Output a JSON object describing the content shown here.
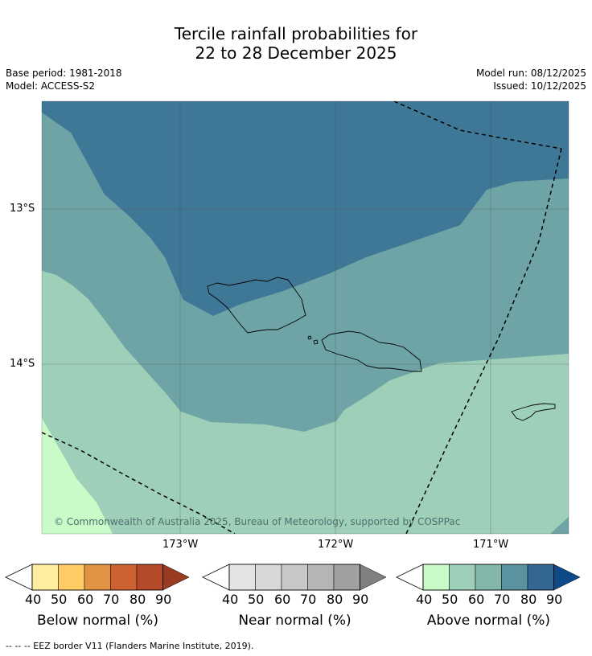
{
  "title_line1": "Tercile rainfall probabilities for",
  "title_line2": "22 to 28 December 2025",
  "meta": {
    "base_period": "Base period: 1981-2018",
    "model": "Model: ACCESS-S2",
    "model_run": "Model run: 08/12/2025",
    "issued": "Issued: 10/12/2025"
  },
  "map": {
    "lat_labels": [
      "13°S",
      "14°S"
    ],
    "lon_labels": [
      "173°W",
      "172°W",
      "171°W"
    ],
    "copyright": "© Commonwealth of Australia 2025, Bureau of Meteorology, supported by COSPPac",
    "colors": {
      "above_90": "#3f7797",
      "above_70": "#6ea4a5",
      "above_50": "#9ed0b9",
      "above_40": "#c8fbc8"
    }
  },
  "colorbars": [
    {
      "label": "Below normal (%)",
      "ticks": [
        "40",
        "50",
        "60",
        "70",
        "80",
        "90"
      ],
      "colors": [
        "#ffeea0",
        "#ffcc66",
        "#e09444",
        "#cc6232",
        "#b44a28",
        "#9a3a20"
      ]
    },
    {
      "label": "Near normal (%)",
      "ticks": [
        "40",
        "50",
        "60",
        "70",
        "80",
        "90"
      ],
      "colors": [
        "#e4e4e4",
        "#d8d8d8",
        "#c8c8c8",
        "#b5b5b5",
        "#a0a0a0",
        "#808080"
      ]
    },
    {
      "label": "Above normal (%)",
      "ticks": [
        "40",
        "50",
        "60",
        "70",
        "80",
        "90"
      ],
      "colors": [
        "#c8fbc8",
        "#9ed0b9",
        "#82b6a9",
        "#5b92a0",
        "#336690",
        "#0c4a88"
      ]
    }
  ],
  "footer": "-- -- -- EEZ border V11 (Flanders Marine Institute, 2019)."
}
